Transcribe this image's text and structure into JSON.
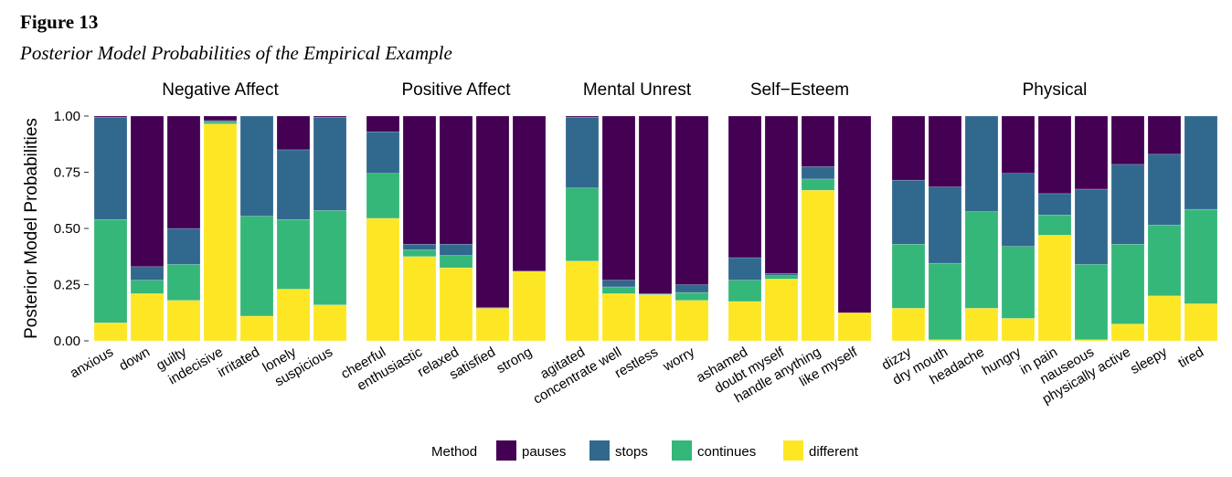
{
  "figure_label": "Figure 13",
  "figure_title": "Posterior Model Probabilities of the Empirical Example",
  "chart_data": {
    "type": "bar",
    "stacked": true,
    "ylabel": "Posterior Model Probabilities",
    "xlabel": "",
    "ylim": [
      0,
      1
    ],
    "yticks": [
      "0.00",
      "0.25",
      "0.50",
      "0.75",
      "1.00"
    ],
    "legend": {
      "title": "Method",
      "position": "bottom"
    },
    "series": [
      {
        "name": "pauses",
        "color": "#440154"
      },
      {
        "name": "stops",
        "color": "#31688E"
      },
      {
        "name": "continues",
        "color": "#35B779"
      },
      {
        "name": "different",
        "color": "#FDE725"
      }
    ],
    "facets": [
      {
        "title": "Negative Affect",
        "items": [
          {
            "label": "anxious",
            "different": 0.08,
            "continues": 0.46,
            "stops": 0.455,
            "pauses": 0.005
          },
          {
            "label": "down",
            "different": 0.21,
            "continues": 0.06,
            "stops": 0.06,
            "pauses": 0.67
          },
          {
            "label": "guilty",
            "different": 0.18,
            "continues": 0.16,
            "stops": 0.16,
            "pauses": 0.5
          },
          {
            "label": "indecisive",
            "different": 0.965,
            "continues": 0.01,
            "stops": 0.005,
            "pauses": 0.02
          },
          {
            "label": "irritated",
            "different": 0.11,
            "continues": 0.445,
            "stops": 0.445,
            "pauses": 0.0
          },
          {
            "label": "lonely",
            "different": 0.23,
            "continues": 0.31,
            "stops": 0.31,
            "pauses": 0.15
          },
          {
            "label": "suspicious",
            "different": 0.16,
            "continues": 0.42,
            "stops": 0.415,
            "pauses": 0.005
          }
        ]
      },
      {
        "title": "Positive Affect",
        "items": [
          {
            "label": "cheerful",
            "different": 0.545,
            "continues": 0.2,
            "stops": 0.185,
            "pauses": 0.07
          },
          {
            "label": "enthusiastic",
            "different": 0.375,
            "continues": 0.03,
            "stops": 0.025,
            "pauses": 0.57
          },
          {
            "label": "relaxed",
            "different": 0.325,
            "continues": 0.055,
            "stops": 0.05,
            "pauses": 0.57
          },
          {
            "label": "satisfied",
            "different": 0.145,
            "continues": 0.0,
            "stops": 0.003,
            "pauses": 0.852
          },
          {
            "label": "strong",
            "different": 0.31,
            "continues": 0.0,
            "stops": 0.0,
            "pauses": 0.69
          }
        ]
      },
      {
        "title": "Mental Unrest",
        "items": [
          {
            "label": "agitated",
            "different": 0.355,
            "continues": 0.325,
            "stops": 0.315,
            "pauses": 0.005
          },
          {
            "label": "concentrate well",
            "different": 0.21,
            "continues": 0.03,
            "stops": 0.03,
            "pauses": 0.73
          },
          {
            "label": "restless",
            "different": 0.205,
            "continues": 0.002,
            "stops": 0.003,
            "pauses": 0.79
          },
          {
            "label": "worry",
            "different": 0.18,
            "continues": 0.035,
            "stops": 0.035,
            "pauses": 0.75
          }
        ]
      },
      {
        "title": "Self−Esteem",
        "items": [
          {
            "label": "ashamed",
            "different": 0.175,
            "continues": 0.095,
            "stops": 0.1,
            "pauses": 0.63
          },
          {
            "label": "doubt myself",
            "different": 0.275,
            "continues": 0.015,
            "stops": 0.01,
            "pauses": 0.7
          },
          {
            "label": "handle anything",
            "different": 0.67,
            "continues": 0.05,
            "stops": 0.055,
            "pauses": 0.225
          },
          {
            "label": "like myself",
            "different": 0.125,
            "continues": 0.0,
            "stops": 0.0,
            "pauses": 0.875
          }
        ]
      },
      {
        "title": "Physical",
        "items": [
          {
            "label": "dizzy",
            "different": 0.145,
            "continues": 0.285,
            "stops": 0.285,
            "pauses": 0.285
          },
          {
            "label": "dry mouth",
            "different": 0.005,
            "continues": 0.34,
            "stops": 0.34,
            "pauses": 0.315
          },
          {
            "label": "headache",
            "different": 0.145,
            "continues": 0.43,
            "stops": 0.425,
            "pauses": 0.0
          },
          {
            "label": "hungry",
            "different": 0.1,
            "continues": 0.32,
            "stops": 0.325,
            "pauses": 0.255
          },
          {
            "label": "in pain",
            "different": 0.47,
            "continues": 0.09,
            "stops": 0.095,
            "pauses": 0.345
          },
          {
            "label": "nauseous",
            "different": 0.005,
            "continues": 0.335,
            "stops": 0.335,
            "pauses": 0.325
          },
          {
            "label": "physically active",
            "different": 0.075,
            "continues": 0.355,
            "stops": 0.355,
            "pauses": 0.215
          },
          {
            "label": "sleepy",
            "different": 0.2,
            "continues": 0.315,
            "stops": 0.315,
            "pauses": 0.17
          },
          {
            "label": "tired",
            "different": 0.165,
            "continues": 0.42,
            "stops": 0.415,
            "pauses": 0.0
          }
        ]
      }
    ]
  }
}
